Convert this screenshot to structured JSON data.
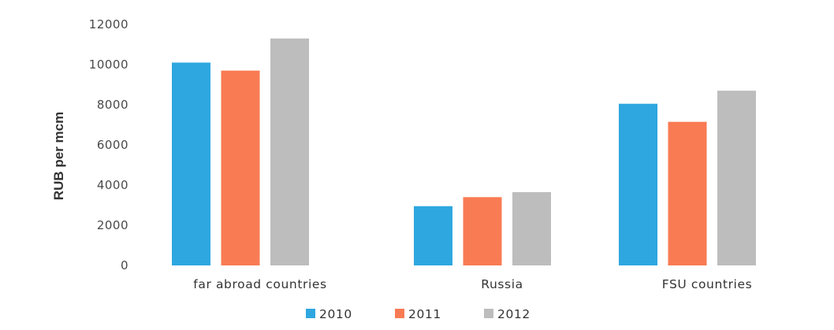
{
  "chart_data": {
    "type": "bar",
    "categories": [
      "far abroad countries",
      "Russia",
      "FSU countries"
    ],
    "series": [
      {
        "name": "2010",
        "color": "#2ea7e0",
        "values": [
          10100,
          2950,
          8050
        ]
      },
      {
        "name": "2011",
        "color": "#f97b54",
        "values": [
          9700,
          3400,
          7150
        ]
      },
      {
        "name": "2012",
        "color": "#bdbdbd",
        "values": [
          11300,
          3650,
          8700
        ]
      }
    ],
    "yticks": [
      "0",
      "2000",
      "4000",
      "6000",
      "8000",
      "10000",
      "12000"
    ],
    "ylim": [
      0,
      12000
    ],
    "ylabel": "RUB per mcm",
    "xlabel": "",
    "title": "",
    "grid": false,
    "legend_position": "bottom"
  }
}
